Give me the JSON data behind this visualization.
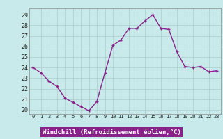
{
  "x": [
    0,
    1,
    2,
    3,
    4,
    5,
    6,
    7,
    8,
    9,
    10,
    11,
    12,
    13,
    14,
    15,
    16,
    17,
    18,
    19,
    20,
    21,
    22,
    23
  ],
  "y": [
    24.0,
    23.5,
    22.7,
    22.2,
    21.1,
    20.7,
    20.3,
    19.9,
    20.8,
    23.5,
    26.1,
    26.6,
    27.7,
    27.7,
    28.4,
    29.0,
    27.7,
    27.6,
    25.5,
    24.1,
    24.0,
    24.1,
    23.6,
    23.7
  ],
  "line_color": "#882288",
  "marker": "+",
  "marker_size": 3,
  "linewidth": 1.0,
  "bg_color": "#c8eaea",
  "grid_color": "#aacccc",
  "axes_face_color": "#c8eaea",
  "xlabel": "Windchill (Refroidissement éolien,°C)",
  "xlabel_color": "#ffffff",
  "xlabel_bg": "#882288",
  "ylabel_ticks": [
    20,
    21,
    22,
    23,
    24,
    25,
    26,
    27,
    28,
    29
  ],
  "xtick_labels": [
    "0",
    "1",
    "2",
    "3",
    "4",
    "5",
    "6",
    "7",
    "8",
    "9",
    "10",
    "11",
    "12",
    "13",
    "14",
    "15",
    "16",
    "17",
    "18",
    "19",
    "20",
    "21",
    "22",
    "23"
  ],
  "ylim": [
    19.6,
    29.6
  ],
  "xlim": [
    -0.5,
    23.5
  ]
}
